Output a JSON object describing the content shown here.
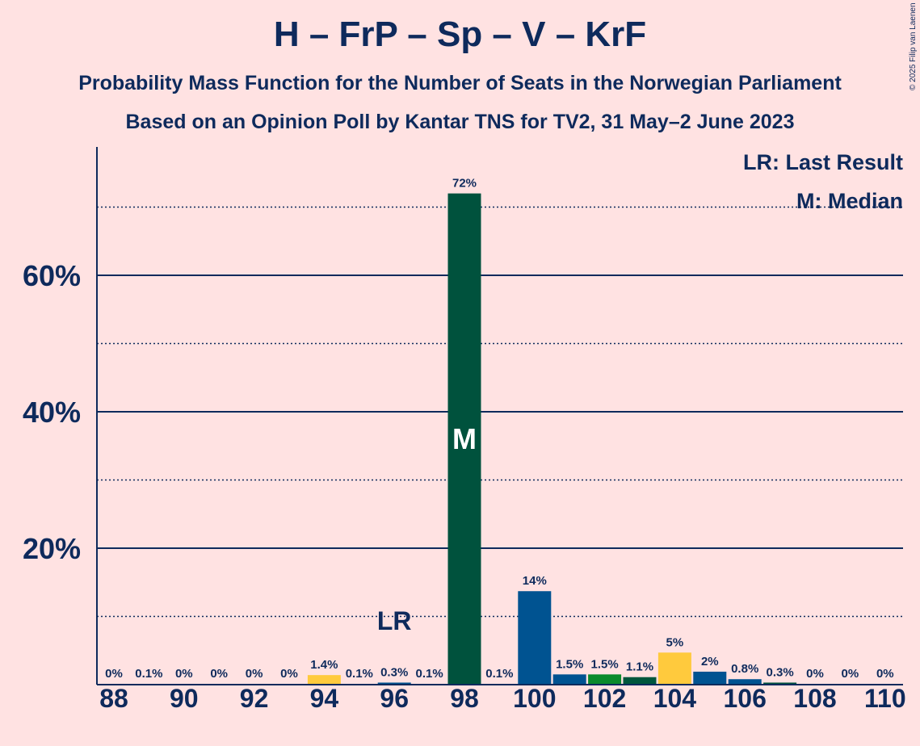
{
  "title": "H – FrP – Sp – V – KrF",
  "subtitle_1": "Probability Mass Function for the Number of Seats in the Norwegian Parliament",
  "subtitle_2": "Based on an Opinion Poll by Kantar TNS for TV2, 31 May–2 June 2023",
  "copyright": "© 2025 Filip van Laenen",
  "colors": {
    "background": "#FFE2E2",
    "text": "#0E2A5C",
    "H": "#005391",
    "FrP": "#00523D",
    "Sp": "#0B8A2C",
    "V": "#00563C",
    "KrF": "#FFCA3D"
  },
  "chart_data": {
    "type": "bar",
    "xlabel": "",
    "ylabel": "",
    "ylim": [
      0,
      78
    ],
    "y_ticks": [
      {
        "value": 20,
        "label": "20%"
      },
      {
        "value": 40,
        "label": "40%"
      },
      {
        "value": 60,
        "label": "60%"
      }
    ],
    "minor_gridlines": [
      10,
      30,
      50,
      70
    ],
    "x_tick_labels": [
      "88",
      "90",
      "92",
      "94",
      "96",
      "98",
      "100",
      "102",
      "104",
      "106",
      "108",
      "110"
    ],
    "bars": [
      {
        "seats": 88,
        "value": 0,
        "label": "0%",
        "color": "#005391"
      },
      {
        "seats": 89,
        "value": 0.1,
        "label": "0.1%",
        "color": "#00523D"
      },
      {
        "seats": 90,
        "value": 0,
        "label": "0%",
        "color": "#0B8A2C"
      },
      {
        "seats": 91,
        "value": 0,
        "label": "0%",
        "color": "#00563C"
      },
      {
        "seats": 92,
        "value": 0,
        "label": "0%",
        "color": "#FFCA3D"
      },
      {
        "seats": 93,
        "value": 0,
        "label": "0%",
        "color": "#005391"
      },
      {
        "seats": 94,
        "value": 1.4,
        "label": "1.4%",
        "color": "#FFCA3D"
      },
      {
        "seats": 95,
        "value": 0.1,
        "label": "0.1%",
        "color": "#0B8A2C"
      },
      {
        "seats": 96,
        "value": 0.3,
        "label": "0.3%",
        "color": "#005391"
      },
      {
        "seats": 97,
        "value": 0.1,
        "label": "0.1%",
        "color": "#FFCA3D"
      },
      {
        "seats": 98,
        "value": 72,
        "label": "72%",
        "color": "#00523D"
      },
      {
        "seats": 99,
        "value": 0.1,
        "label": "0.1%",
        "color": "#0B8A2C"
      },
      {
        "seats": 100,
        "value": 13.7,
        "label": "14%",
        "color": "#005391"
      },
      {
        "seats": 101,
        "value": 1.5,
        "label": "1.5%",
        "color": "#005391"
      },
      {
        "seats": 102,
        "value": 1.5,
        "label": "1.5%",
        "color": "#0B8A2C"
      },
      {
        "seats": 103,
        "value": 1.1,
        "label": "1.1%",
        "color": "#00563C"
      },
      {
        "seats": 104,
        "value": 4.7,
        "label": "5%",
        "color": "#FFCA3D"
      },
      {
        "seats": 105,
        "value": 1.9,
        "label": "2%",
        "color": "#005391"
      },
      {
        "seats": 106,
        "value": 0.8,
        "label": "0.8%",
        "color": "#005391"
      },
      {
        "seats": 107,
        "value": 0.3,
        "label": "0.3%",
        "color": "#00523D"
      },
      {
        "seats": 108,
        "value": 0,
        "label": "0%",
        "color": "#0B8A2C"
      },
      {
        "seats": 109,
        "value": 0,
        "label": "0%",
        "color": "#00563C"
      },
      {
        "seats": 110,
        "value": 0,
        "label": "0%",
        "color": "#FFCA3D"
      }
    ],
    "last_result": {
      "seats": 96,
      "marker": "LR"
    },
    "median": {
      "seats": 98,
      "marker": "M"
    },
    "legend": {
      "placement": "top-right",
      "entries": [
        "LR: Last Result",
        "M: Median"
      ]
    }
  }
}
